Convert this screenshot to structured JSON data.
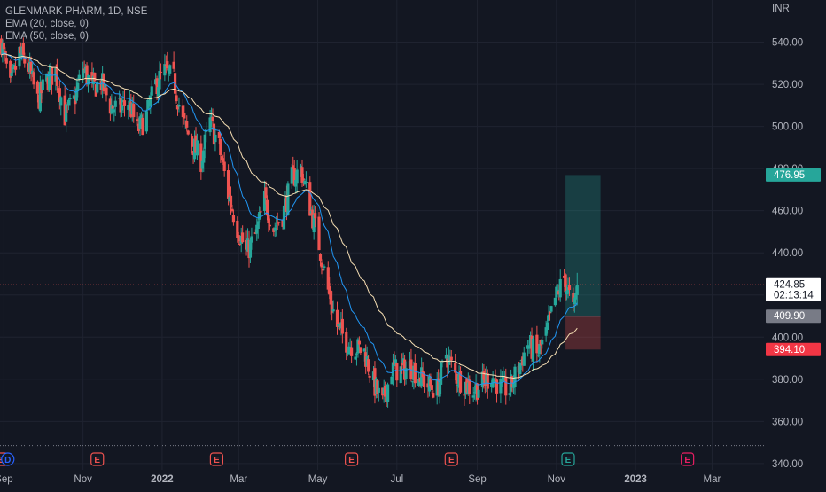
{
  "legend": {
    "symbol": "GLENMARK PHARM, 1D, NSE",
    "ema20": "EMA (20, close, 0)",
    "ema50": "EMA (50, close, 0)"
  },
  "currency_label": "INR",
  "chart_data": {
    "type": "candlestick",
    "price_axis": {
      "ticks": [
        "340.00",
        "360.00",
        "380.00",
        "400.00",
        "420.00",
        "440.00",
        "460.00",
        "480.00",
        "500.00",
        "520.00",
        "540.00"
      ],
      "range": [
        337,
        560
      ]
    },
    "time_axis": {
      "labels": [
        "Sep",
        "Nov",
        "2022",
        "Mar",
        "May",
        "Jul",
        "Sep",
        "Nov",
        "2023",
        "Mar"
      ],
      "label_dates": [
        "2021-09-01",
        "2021-11-01",
        "2022-01-01",
        "2022-03-01",
        "2022-05-01",
        "2022-07-01",
        "2022-09-01",
        "2022-11-01",
        "2023-01-01",
        "2023-03-01"
      ],
      "range": [
        "2021-08-29",
        "2023-04-10"
      ]
    },
    "colors": {
      "up": "#26a69a",
      "down": "#ef5350",
      "ema20": "#2196f3",
      "ema50": "#f5deb3",
      "grid": "#1f2330"
    },
    "price_labels": [
      {
        "text": "476.95",
        "price": 476.95,
        "bg": "#26a69a",
        "fg": "#ffffff"
      },
      {
        "text": "424.85",
        "sub": "02:13:14",
        "price": 424.85,
        "bg": "#ffffff",
        "fg": "#131722"
      },
      {
        "text": "409.90",
        "price": 409.9,
        "bg": "#787b86",
        "fg": "#ffffff"
      },
      {
        "text": "394.10",
        "price": 394.1,
        "bg": "#f23645",
        "fg": "#ffffff"
      }
    ],
    "position": {
      "start": "2022-11-08",
      "end": "2022-12-05",
      "entry": 409.9,
      "target": 476.95,
      "stop": 394.1
    },
    "current_price": 424.85,
    "lowest_level": 348.5,
    "event_markers": [
      {
        "label": "E",
        "date": "2021-08-30",
        "type": "earnings-past"
      },
      {
        "label": "D",
        "date": "2021-09-04",
        "type": "dividend"
      },
      {
        "label": "E",
        "date": "2021-11-12",
        "type": "earnings-past"
      },
      {
        "label": "E",
        "date": "2022-02-12",
        "type": "earnings-past"
      },
      {
        "label": "E",
        "date": "2022-05-27",
        "type": "earnings-past"
      },
      {
        "label": "E",
        "date": "2022-08-12",
        "type": "earnings-past"
      },
      {
        "label": "E",
        "date": "2022-11-10",
        "type": "earnings-past"
      },
      {
        "label": "E",
        "date": "2023-02-10",
        "type": "earnings-future"
      }
    ],
    "close_anchors": [
      [
        "2021-08-30",
        540
      ],
      [
        "2021-09-06",
        518
      ],
      [
        "2021-09-13",
        535
      ],
      [
        "2021-09-20",
        528
      ],
      [
        "2021-09-27",
        512
      ],
      [
        "2021-10-04",
        522
      ],
      [
        "2021-10-11",
        526
      ],
      [
        "2021-10-18",
        505
      ],
      [
        "2021-10-25",
        512
      ],
      [
        "2021-11-01",
        528
      ],
      [
        "2021-11-08",
        518
      ],
      [
        "2021-11-15",
        521
      ],
      [
        "2021-11-22",
        510
      ],
      [
        "2021-11-29",
        508
      ],
      [
        "2021-12-06",
        512
      ],
      [
        "2021-12-13",
        498
      ],
      [
        "2021-12-20",
        505
      ],
      [
        "2021-12-27",
        520
      ],
      [
        "2022-01-03",
        526
      ],
      [
        "2022-01-10",
        522
      ],
      [
        "2022-01-17",
        502
      ],
      [
        "2022-01-24",
        492
      ],
      [
        "2022-01-31",
        484
      ],
      [
        "2022-02-07",
        502
      ],
      [
        "2022-02-14",
        490
      ],
      [
        "2022-02-21",
        468
      ],
      [
        "2022-02-28",
        452
      ],
      [
        "2022-03-07",
        440
      ],
      [
        "2022-03-14",
        448
      ],
      [
        "2022-03-21",
        465
      ],
      [
        "2022-03-28",
        452
      ],
      [
        "2022-04-04",
        458
      ],
      [
        "2022-04-11",
        475
      ],
      [
        "2022-04-18",
        480
      ],
      [
        "2022-04-25",
        462
      ],
      [
        "2022-05-02",
        444
      ],
      [
        "2022-05-09",
        422
      ],
      [
        "2022-05-16",
        405
      ],
      [
        "2022-05-23",
        398
      ],
      [
        "2022-05-30",
        395
      ],
      [
        "2022-06-06",
        393
      ],
      [
        "2022-06-13",
        378
      ],
      [
        "2022-06-20",
        368
      ],
      [
        "2022-06-27",
        385
      ],
      [
        "2022-07-04",
        384
      ],
      [
        "2022-07-11",
        386
      ],
      [
        "2022-07-18",
        382
      ],
      [
        "2022-07-25",
        377
      ],
      [
        "2022-08-01",
        375
      ],
      [
        "2022-08-08",
        392
      ],
      [
        "2022-08-15",
        382
      ],
      [
        "2022-08-22",
        378
      ],
      [
        "2022-08-29",
        375
      ],
      [
        "2022-09-05",
        378
      ],
      [
        "2022-09-12",
        382
      ],
      [
        "2022-09-19",
        376
      ],
      [
        "2022-09-26",
        375
      ],
      [
        "2022-10-03",
        386
      ],
      [
        "2022-10-10",
        397
      ],
      [
        "2022-10-17",
        391
      ],
      [
        "2022-10-24",
        401
      ],
      [
        "2022-10-31",
        418
      ],
      [
        "2022-11-07",
        428
      ],
      [
        "2022-11-14",
        412
      ],
      [
        "2022-11-17",
        424.85
      ]
    ]
  }
}
